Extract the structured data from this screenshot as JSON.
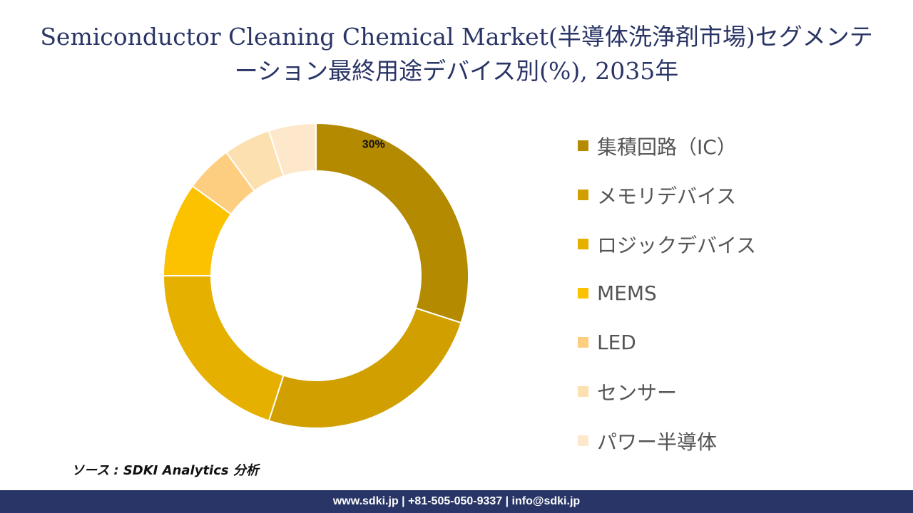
{
  "title": "Semiconductor Cleaning Chemical Market(半導体洗浄剤市場)セグメンテーション最終用途デバイス別(%), 2035年",
  "chart_data": {
    "type": "pie",
    "style": "donut",
    "categories": [
      "集積回路（IC）",
      "メモリデバイス",
      "ロジックデバイス",
      "MEMS",
      "LED",
      "センサー",
      "パワー半導体"
    ],
    "values": [
      30,
      25,
      20,
      10,
      5,
      5,
      5
    ],
    "data_labels": [
      "30%",
      "",
      "",
      "",
      "",
      "",
      ""
    ],
    "colors": [
      "#b38a00",
      "#d1a000",
      "#e6b000",
      "#fcc200",
      "#fdcd80",
      "#fde0b0",
      "#fee8cc"
    ],
    "legend_position": "right"
  },
  "source": "ソース : SDKI Analytics 分析",
  "footer": "www.sdki.jp | +81-505-050-9337 | info@sdki.jp"
}
